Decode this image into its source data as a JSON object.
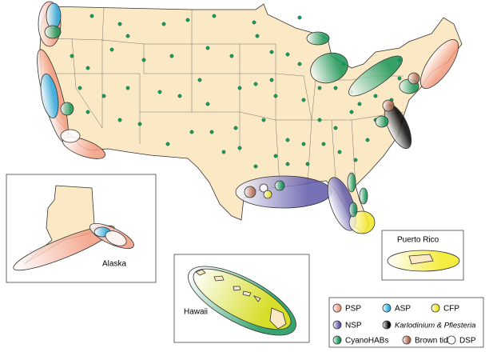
{
  "map": {
    "insets": {
      "alaska": "Alaska",
      "hawaii": "Hawaii",
      "puerto_rico": "Puerto Rico"
    },
    "legend": [
      {
        "label": "PSP",
        "color": "#f29a7e"
      },
      {
        "label": "ASP",
        "color": "#2aaee6"
      },
      {
        "label": "CFP",
        "color": "#f2e81e"
      },
      {
        "label": "NSP",
        "color": "#5f58a8"
      },
      {
        "label": "Karlodinium & Pfiesteria",
        "color": "#000000"
      },
      {
        "label": "CyanoHABs",
        "color": "#159456"
      },
      {
        "label": "Brown tide",
        "color": "#b06a52"
      },
      {
        "label": "DSP",
        "color": "#ffffff"
      }
    ]
  }
}
